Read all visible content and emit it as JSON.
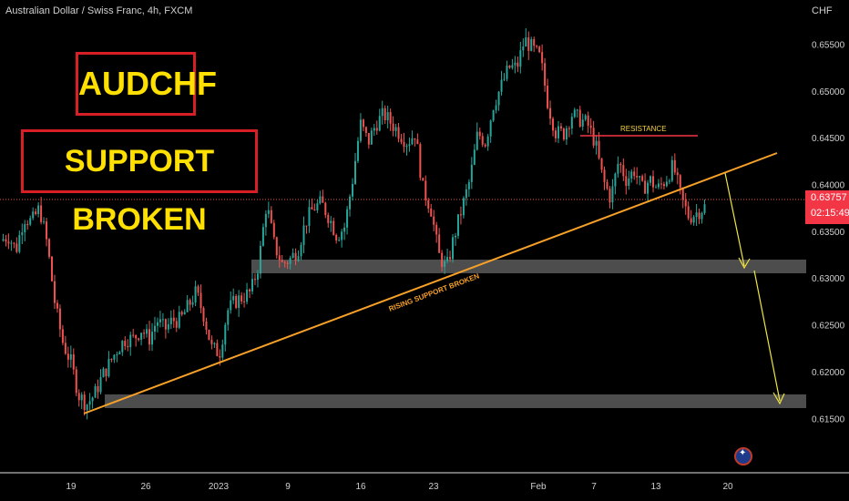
{
  "header": {
    "symbol": "Australian Dollar / Swiss Franc, 4h, FXCM",
    "currency": "CHF"
  },
  "labels": {
    "title": "AUDCHF",
    "subtitle": "SUPPORT BROKEN",
    "resistance": "RESISTANCE",
    "trendline": "RISING SUPPORT BROKEN"
  },
  "price_badge": {
    "price": "0.63757",
    "countdown": "02:15:49"
  },
  "icons": [
    "australia-flag-icon"
  ],
  "colors": {
    "bull": "#26a69a",
    "bear": "#ef5350",
    "trendline": "#f7a128",
    "arrow": "#f0e442",
    "resistance": "#f23645",
    "zone": "#5a5a5a",
    "label_border": "#d81f26",
    "label_text": "#ffe000"
  },
  "chart_data": {
    "type": "candlestick",
    "title": "Australian Dollar / Swiss Franc, 4h, FXCM",
    "y_unit": "CHF",
    "ylim": [
      0.6125,
      0.6565
    ],
    "y_ticks": [
      0.615,
      0.62,
      0.625,
      0.63,
      0.635,
      0.64,
      0.645,
      0.65,
      0.655
    ],
    "x_ticks": [
      "19",
      "26",
      "2023",
      "9",
      "16",
      "23",
      "Feb",
      "7",
      "13",
      "20"
    ],
    "grid": false,
    "last_price": 0.63757,
    "price_path": [
      0.634,
      0.6345,
      0.633,
      0.6365,
      0.636,
      0.6375,
      0.6335,
      0.627,
      0.623,
      0.621,
      0.6175,
      0.6165,
      0.6175,
      0.6195,
      0.621,
      0.6225,
      0.6235,
      0.6235,
      0.6245,
      0.6235,
      0.6255,
      0.6245,
      0.6255,
      0.6255,
      0.627,
      0.6285,
      0.626,
      0.6225,
      0.622,
      0.6265,
      0.6275,
      0.628,
      0.6285,
      0.6315,
      0.638,
      0.6335,
      0.6315,
      0.632,
      0.633,
      0.636,
      0.6375,
      0.638,
      0.6365,
      0.6345,
      0.6355,
      0.6405,
      0.6465,
      0.6445,
      0.6465,
      0.6475,
      0.6465,
      0.6455,
      0.6445,
      0.6455,
      0.6395,
      0.6375,
      0.6325,
      0.631,
      0.6345,
      0.6375,
      0.6405,
      0.6455,
      0.6445,
      0.6485,
      0.6505,
      0.6525,
      0.6525,
      0.6555,
      0.6545,
      0.6535,
      0.6485,
      0.6455,
      0.6455,
      0.6475,
      0.647,
      0.6465,
      0.6445,
      0.6405,
      0.6385,
      0.6425,
      0.6405,
      0.6415,
      0.6395,
      0.6405,
      0.6395,
      0.6405,
      0.642,
      0.6385,
      0.6365,
      0.637,
      0.6376
    ],
    "support_zones": [
      {
        "low": 0.63,
        "high": 0.6315
      },
      {
        "low": 0.6165,
        "high": 0.618
      }
    ],
    "resistance_level": 0.6441,
    "rising_support_line": {
      "from": 0.6162,
      "to": 0.6425
    }
  }
}
